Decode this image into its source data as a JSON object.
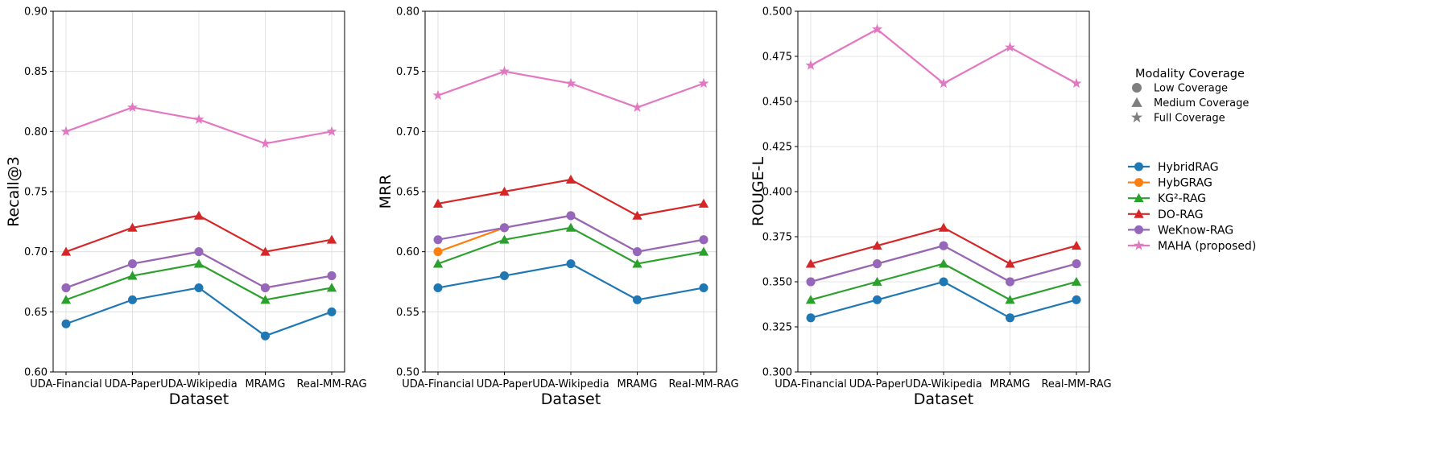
{
  "chart_data": [
    {
      "type": "line",
      "title": "",
      "xlabel": "Dataset",
      "ylabel": "Recall@3",
      "ylim": [
        0.6,
        0.9
      ],
      "yticks": [
        "0.60",
        "0.65",
        "0.70",
        "0.75",
        "0.80",
        "0.85",
        "0.90"
      ],
      "grid": true,
      "categories": [
        "UDA-Financial",
        "UDA-Paper",
        "UDA-Wikipedia",
        "MRAMG",
        "Real-MM-RAG"
      ],
      "series": [
        {
          "name": "HybridRAG",
          "color": "#1f77b4",
          "marker": "circle",
          "values": [
            0.64,
            0.66,
            0.67,
            0.63,
            0.65
          ]
        },
        {
          "name": "HybGRAG",
          "color": "#ff7f0e",
          "marker": "circle",
          "values": [
            0.67,
            0.69,
            0.7,
            0.67,
            0.68
          ]
        },
        {
          "name": "KG²-RAG",
          "color": "#2ca02c",
          "marker": "triangle",
          "values": [
            0.66,
            0.68,
            0.69,
            0.66,
            0.67
          ]
        },
        {
          "name": "DO-RAG",
          "color": "#d62728",
          "marker": "triangle",
          "values": [
            0.7,
            0.72,
            0.73,
            0.7,
            0.71
          ]
        },
        {
          "name": "WeKnow-RAG",
          "color": "#9467bd",
          "marker": "circle",
          "values": [
            0.67,
            0.69,
            0.7,
            0.67,
            0.68
          ]
        },
        {
          "name": "MAHA (proposed)",
          "color": "#e377c2",
          "marker": "star",
          "values": [
            0.8,
            0.82,
            0.81,
            0.79,
            0.8
          ]
        }
      ]
    },
    {
      "type": "line",
      "title": "",
      "xlabel": "Dataset",
      "ylabel": "MRR",
      "ylim": [
        0.5,
        0.8
      ],
      "yticks": [
        "0.50",
        "0.55",
        "0.60",
        "0.65",
        "0.70",
        "0.75",
        "0.80"
      ],
      "grid": true,
      "categories": [
        "UDA-Financial",
        "UDA-Paper",
        "UDA-Wikipedia",
        "MRAMG",
        "Real-MM-RAG"
      ],
      "series": [
        {
          "name": "HybridRAG",
          "color": "#1f77b4",
          "marker": "circle",
          "values": [
            0.57,
            0.58,
            0.59,
            0.56,
            0.57
          ]
        },
        {
          "name": "HybGRAG",
          "color": "#ff7f0e",
          "marker": "circle",
          "values": [
            0.6,
            0.62,
            0.63,
            0.6,
            0.61
          ]
        },
        {
          "name": "KG²-RAG",
          "color": "#2ca02c",
          "marker": "triangle",
          "values": [
            0.59,
            0.61,
            0.62,
            0.59,
            0.6
          ]
        },
        {
          "name": "DO-RAG",
          "color": "#d62728",
          "marker": "triangle",
          "values": [
            0.64,
            0.65,
            0.66,
            0.63,
            0.64
          ]
        },
        {
          "name": "WeKnow-RAG",
          "color": "#9467bd",
          "marker": "circle",
          "values": [
            0.61,
            0.62,
            0.63,
            0.6,
            0.61
          ]
        },
        {
          "name": "MAHA (proposed)",
          "color": "#e377c2",
          "marker": "star",
          "values": [
            0.73,
            0.75,
            0.74,
            0.72,
            0.74
          ]
        }
      ]
    },
    {
      "type": "line",
      "title": "",
      "xlabel": "Dataset",
      "ylabel": "ROUGE-L",
      "ylim": [
        0.3,
        0.5
      ],
      "yticks": [
        "0.300",
        "0.325",
        "0.350",
        "0.375",
        "0.400",
        "0.425",
        "0.450",
        "0.475",
        "0.500"
      ],
      "grid": true,
      "categories": [
        "UDA-Financial",
        "UDA-Paper",
        "UDA-Wikipedia",
        "MRAMG",
        "Real-MM-RAG"
      ],
      "series": [
        {
          "name": "HybridRAG",
          "color": "#1f77b4",
          "marker": "circle",
          "values": [
            0.33,
            0.34,
            0.35,
            0.33,
            0.34
          ]
        },
        {
          "name": "HybGRAG",
          "color": "#ff7f0e",
          "marker": "circle",
          "values": [
            0.35,
            0.36,
            0.37,
            0.35,
            0.36
          ]
        },
        {
          "name": "KG²-RAG",
          "color": "#2ca02c",
          "marker": "triangle",
          "values": [
            0.34,
            0.35,
            0.36,
            0.34,
            0.35
          ]
        },
        {
          "name": "DO-RAG",
          "color": "#d62728",
          "marker": "triangle",
          "values": [
            0.36,
            0.37,
            0.38,
            0.36,
            0.37
          ]
        },
        {
          "name": "WeKnow-RAG",
          "color": "#9467bd",
          "marker": "circle",
          "values": [
            0.35,
            0.36,
            0.37,
            0.35,
            0.36
          ]
        },
        {
          "name": "MAHA (proposed)",
          "color": "#e377c2",
          "marker": "star",
          "values": [
            0.47,
            0.49,
            0.46,
            0.48,
            0.46
          ]
        }
      ]
    }
  ],
  "legend": {
    "coverage_title": "Modality Coverage",
    "coverage_items": [
      {
        "label": "Low Coverage",
        "marker": "circle",
        "color": "#7f7f7f"
      },
      {
        "label": "Medium Coverage",
        "marker": "triangle",
        "color": "#7f7f7f"
      },
      {
        "label": "Full Coverage",
        "marker": "star",
        "color": "#7f7f7f"
      }
    ],
    "method_items": [
      {
        "label": "HybridRAG",
        "marker": "circle",
        "color": "#1f77b4"
      },
      {
        "label": "HybGRAG",
        "marker": "circle",
        "color": "#ff7f0e"
      },
      {
        "label": "KG²-RAG",
        "marker": "triangle",
        "color": "#2ca02c"
      },
      {
        "label": "DO-RAG",
        "marker": "triangle",
        "color": "#d62728"
      },
      {
        "label": "WeKnow-RAG",
        "marker": "circle",
        "color": "#9467bd"
      },
      {
        "label": "MAHA (proposed)",
        "marker": "star",
        "color": "#e377c2"
      }
    ]
  }
}
